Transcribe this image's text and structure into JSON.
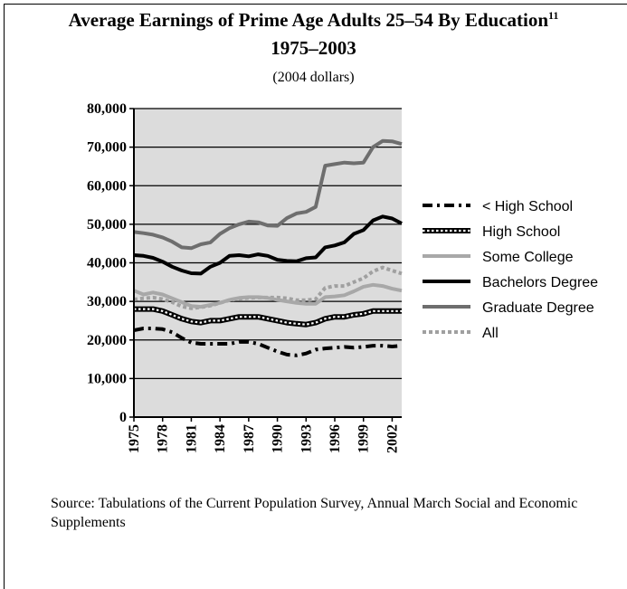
{
  "chart_data": {
    "type": "line",
    "title": "Average Earnings of Prime Age Adults 25–54 By Education",
    "title_superscript": "11",
    "title_line2": "1975–2003",
    "subtitle": "(2004 dollars)",
    "xlabel": "",
    "ylabel": "",
    "ylim": [
      0,
      80000
    ],
    "xlim": [
      1975,
      2003
    ],
    "grid": true,
    "legend_position": "right",
    "background_color": "#dcdcdc",
    "y_ticks": [
      "0",
      "10,000",
      "20,000",
      "30,000",
      "40,000",
      "50,000",
      "60,000",
      "70,000",
      "80,000"
    ],
    "y_tick_values": [
      0,
      10000,
      20000,
      30000,
      40000,
      50000,
      60000,
      70000,
      80000
    ],
    "x_ticks": [
      "1975",
      "1978",
      "1981",
      "1984",
      "1987",
      "1990",
      "1993",
      "1996",
      "1999",
      "2002"
    ],
    "x_tick_values": [
      1975,
      1978,
      1981,
      1984,
      1987,
      1990,
      1993,
      1996,
      1999,
      2002
    ],
    "x": [
      1975,
      1976,
      1977,
      1978,
      1979,
      1980,
      1981,
      1982,
      1983,
      1984,
      1985,
      1986,
      1987,
      1988,
      1989,
      1990,
      1991,
      1992,
      1993,
      1994,
      1995,
      1996,
      1997,
      1998,
      1999,
      2000,
      2001,
      2002,
      2003
    ],
    "series": [
      {
        "name": "< High School",
        "color": "#000000",
        "style": "dashdot",
        "values": [
          22500,
          23000,
          23000,
          22800,
          22000,
          20500,
          19300,
          19000,
          19000,
          19000,
          19000,
          19500,
          19500,
          19000,
          18000,
          17000,
          16200,
          16000,
          16500,
          17500,
          17800,
          18000,
          18200,
          18000,
          18200,
          18500,
          18500,
          18300,
          18500
        ]
      },
      {
        "name": "High School",
        "color": "#000000",
        "style": "dotted-white",
        "values": [
          28000,
          28000,
          28000,
          27500,
          26500,
          25500,
          24800,
          24500,
          25000,
          25000,
          25500,
          26000,
          26000,
          26000,
          25500,
          25000,
          24500,
          24200,
          24000,
          24500,
          25500,
          26000,
          26000,
          26500,
          26800,
          27500,
          27500,
          27500,
          27500
        ]
      },
      {
        "name": "Some College",
        "color": "#a8a8a8",
        "style": "solid",
        "values": [
          32800,
          31800,
          32300,
          31800,
          30800,
          29800,
          28800,
          28600,
          29100,
          29600,
          30400,
          30900,
          31100,
          31100,
          30900,
          30400,
          30000,
          29600,
          29400,
          29400,
          31100,
          31300,
          31600,
          32600,
          33800,
          34300,
          34000,
          33300,
          32800
        ]
      },
      {
        "name": "Bachelors Degree",
        "color": "#000000",
        "style": "solid",
        "values": [
          42000,
          41800,
          41300,
          40300,
          39000,
          38000,
          37300,
          37200,
          39000,
          40000,
          41800,
          42000,
          41700,
          42200,
          41800,
          40800,
          40500,
          40400,
          41200,
          41400,
          44000,
          44500,
          45300,
          47500,
          48500,
          51000,
          52000,
          51500,
          50200
        ]
      },
      {
        "name": "Graduate Degree",
        "color": "#6e6e6e",
        "style": "solid",
        "values": [
          48000,
          47700,
          47300,
          46600,
          45500,
          44000,
          43800,
          44800,
          45300,
          47500,
          49000,
          50000,
          50700,
          50500,
          49700,
          49600,
          51600,
          52800,
          53200,
          54500,
          65200,
          65600,
          66000,
          65800,
          66000,
          70000,
          71600,
          71500,
          70800
        ]
      },
      {
        "name": "All",
        "color": "#a0a0a0",
        "style": "dotted",
        "values": [
          30500,
          30800,
          31000,
          30600,
          29800,
          28700,
          28200,
          28500,
          28900,
          29600,
          30300,
          30700,
          30900,
          31000,
          31000,
          31000,
          30800,
          30300,
          30300,
          30600,
          33500,
          34000,
          34000,
          35000,
          36000,
          37800,
          38800,
          38000,
          37200
        ]
      }
    ]
  },
  "source_text": "Source: Tabulations of the Current Population Survey, Annual March Social and Economic Supplements"
}
